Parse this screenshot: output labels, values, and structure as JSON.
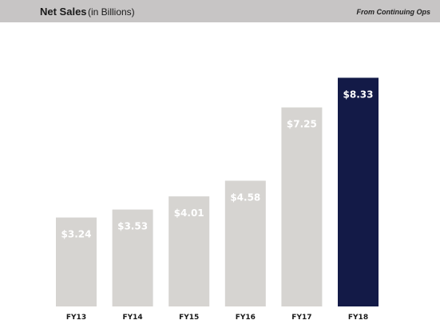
{
  "header": {
    "title": "Net Sales",
    "subtitle": "(in Billions)",
    "note": "From Continuing Ops"
  },
  "colors": {
    "header_background": "#c7c5c5",
    "bar_default": "#d6d4d1",
    "bar_highlight": "#131a47",
    "label_text": "#ffffff"
  },
  "chart_data": {
    "type": "bar",
    "title": "Net Sales",
    "subtitle": "(in Billions)",
    "xlabel": "",
    "ylabel": "",
    "categories": [
      "FY13",
      "FY14",
      "FY15",
      "FY16",
      "FY17",
      "FY18"
    ],
    "values": [
      3.24,
      3.53,
      4.01,
      4.58,
      7.25,
      8.33
    ],
    "data_labels": [
      "$3.24",
      "$3.53",
      "$4.01",
      "$4.58",
      "$7.25",
      "$8.33"
    ],
    "highlight_index": 5,
    "ylim": [
      0,
      10
    ],
    "grid": false,
    "legend": "none"
  }
}
